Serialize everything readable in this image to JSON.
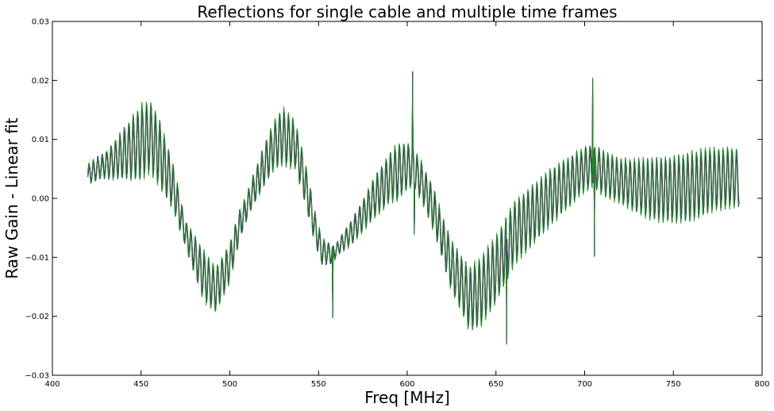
{
  "chart_data": {
    "type": "line",
    "title": "Reflections for single cable and multiple time frames",
    "xlabel": "Freq [MHz]",
    "ylabel": "Raw Gain - Linear fit",
    "xlim": [
      400,
      800
    ],
    "ylim": [
      -0.03,
      0.03
    ],
    "xticks": [
      400,
      450,
      500,
      550,
      600,
      650,
      700,
      750,
      800
    ],
    "xtick_labels": [
      "400",
      "450",
      "500",
      "550",
      "600",
      "650",
      "700",
      "750",
      "800"
    ],
    "yticks": [
      -0.03,
      -0.02,
      -0.01,
      0.0,
      0.01,
      0.02,
      0.03
    ],
    "ytick_labels": [
      "−0.03",
      "−0.02",
      "−0.01",
      "0.00",
      "0.01",
      "0.02",
      "0.03"
    ],
    "grid": false,
    "legend": "none",
    "x_range_of_data": [
      420,
      787
    ],
    "ripple_period_mhz": 2.5,
    "series_colors": [
      "#222222",
      "#b03060",
      "#7a3fa0",
      "#1a1aa0",
      "#1f8a1f"
    ],
    "envelope": {
      "x": [
        420,
        425,
        432,
        440,
        450,
        455,
        460,
        468,
        475,
        485,
        492,
        500,
        505,
        512,
        520,
        525,
        530,
        537,
        543,
        548,
        552,
        558,
        562,
        568,
        575,
        580,
        590,
        600,
        603,
        608,
        615,
        625,
        635,
        641,
        650,
        656,
        660,
        670,
        680,
        690,
        700,
        705,
        712,
        720,
        730,
        740,
        750,
        760,
        770,
        780,
        787
      ],
      "y": [
        0.004,
        0.005,
        0.006,
        0.0075,
        0.0095,
        0.0105,
        0.008,
        0.002,
        -0.006,
        -0.013,
        -0.0155,
        -0.011,
        -0.005,
        0.0005,
        0.006,
        0.009,
        0.0105,
        0.009,
        0.002,
        -0.005,
        -0.009,
        -0.0095,
        -0.008,
        -0.006,
        -0.003,
        -0.0005,
        0.0035,
        0.0055,
        0.0055,
        0.003,
        -0.002,
        -0.0115,
        -0.017,
        -0.016,
        -0.012,
        -0.0085,
        -0.006,
        -0.003,
        0.0,
        0.0025,
        0.005,
        0.0055,
        0.004,
        0.003,
        0.002,
        0.0015,
        0.0015,
        0.002,
        0.003,
        0.0035,
        0.0035
      ]
    },
    "ripple_amplitude": {
      "x": [
        420,
        430,
        450,
        460,
        475,
        485,
        500,
        510,
        530,
        545,
        560,
        580,
        595,
        605,
        620,
        640,
        660,
        680,
        700,
        720,
        740,
        760,
        787
      ],
      "y": [
        0.0015,
        0.002,
        0.006,
        0.0055,
        0.002,
        0.004,
        0.003,
        0.002,
        0.0045,
        0.003,
        0.001,
        0.003,
        0.0045,
        0.003,
        0.0035,
        0.0055,
        0.005,
        0.0045,
        0.0035,
        0.0035,
        0.005,
        0.0055,
        0.0045
      ]
    },
    "spikes": [
      {
        "x": 558,
        "y": -0.02
      },
      {
        "x": 603,
        "y": 0.0213
      },
      {
        "x": 604,
        "y": -0.006
      },
      {
        "x": 656,
        "y": -0.0245
      },
      {
        "x": 704.5,
        "y": 0.0203
      },
      {
        "x": 705.5,
        "y": -0.0097
      }
    ]
  }
}
